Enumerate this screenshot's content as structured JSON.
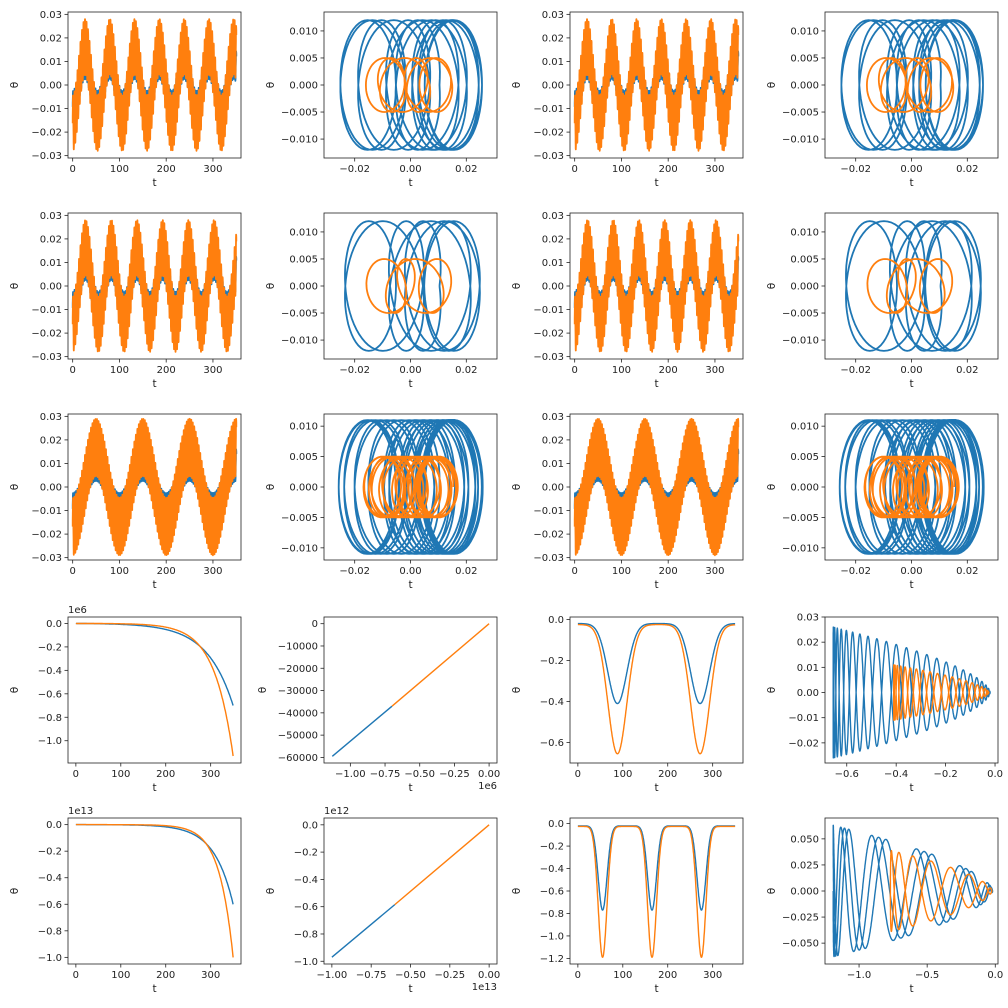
{
  "figure": {
    "rows": 5,
    "cols": 4
  },
  "colors": {
    "blue": "#1f77b4",
    "orange": "#ff7f0e"
  },
  "chart_data": [
    {
      "type": "line",
      "signal": "osc_time",
      "amps": [
        0.016,
        0.028
      ],
      "period": 53,
      "xlim": [
        -10,
        360
      ],
      "ylim": [
        -0.031,
        0.031
      ],
      "xticks": [
        0,
        100,
        200,
        300
      ],
      "xticklabels": [
        "0",
        "100",
        "200",
        "300"
      ],
      "yticks": [
        -0.03,
        -0.02,
        -0.01,
        0,
        0.01,
        0.02,
        0.03
      ],
      "yticklabels": [
        "-0.03",
        "-0.02",
        "-0.01",
        "0.00",
        "0.01",
        "0.02",
        "0.03"
      ],
      "xlabel": "t",
      "ylabel": "θ",
      "offset": ""
    },
    {
      "type": "line",
      "signal": "orbit_osc",
      "rx": [
        0.026,
        0.016
      ],
      "ry": [
        0.012,
        0.005
      ],
      "count": [
        14,
        9
      ],
      "xlim": [
        -0.031,
        0.031
      ],
      "ylim": [
        -0.0135,
        0.0135
      ],
      "xticks": [
        -0.02,
        0,
        0.02
      ],
      "xticklabels": [
        "-0.02",
        "0.00",
        "0.02"
      ],
      "yticks": [
        -0.01,
        -0.005,
        0,
        0.005,
        0.01
      ],
      "yticklabels": [
        "-0.010",
        "-0.005",
        "0.000",
        "0.005",
        "0.010"
      ],
      "xlabel": "t",
      "ylabel": "θ",
      "offset": ""
    },
    {
      "type": "line",
      "signal": "osc_time",
      "amps": [
        0.016,
        0.028
      ],
      "period": 53,
      "xlim": [
        -10,
        360
      ],
      "ylim": [
        -0.031,
        0.031
      ],
      "xticks": [
        0,
        100,
        200,
        300
      ],
      "xticklabels": [
        "0",
        "100",
        "200",
        "300"
      ],
      "yticks": [
        -0.03,
        -0.02,
        -0.01,
        0,
        0.01,
        0.02,
        0.03
      ],
      "yticklabels": [
        "-0.03",
        "-0.02",
        "-0.01",
        "0.00",
        "0.01",
        "0.02",
        "0.03"
      ],
      "xlabel": "t",
      "ylabel": "θ",
      "offset": ""
    },
    {
      "type": "line",
      "signal": "orbit_osc",
      "rx": [
        0.026,
        0.016
      ],
      "ry": [
        0.012,
        0.005
      ],
      "count": [
        14,
        9
      ],
      "xlim": [
        -0.031,
        0.031
      ],
      "ylim": [
        -0.0135,
        0.0135
      ],
      "xticks": [
        -0.02,
        0,
        0.02
      ],
      "xticklabels": [
        "-0.02",
        "0.00",
        "0.02"
      ],
      "yticks": [
        -0.01,
        -0.005,
        0,
        0.005,
        0.01
      ],
      "yticklabels": [
        "-0.010",
        "-0.005",
        "0.000",
        "0.005",
        "0.010"
      ],
      "xlabel": "t",
      "ylabel": "θ",
      "offset": ""
    },
    {
      "type": "line",
      "signal": "osc_time",
      "amps": [
        0.016,
        0.028
      ],
      "period": 55,
      "xlim": [
        -10,
        360
      ],
      "ylim": [
        -0.031,
        0.031
      ],
      "xticks": [
        0,
        100,
        200,
        300
      ],
      "xticklabels": [
        "0",
        "100",
        "200",
        "300"
      ],
      "yticks": [
        -0.03,
        -0.02,
        -0.01,
        0,
        0.01,
        0.02,
        0.03
      ],
      "yticklabels": [
        "-0.03",
        "-0.02",
        "-0.01",
        "0.00",
        "0.01",
        "0.02",
        "0.03"
      ],
      "xlabel": "t",
      "ylabel": "θ",
      "offset": ""
    },
    {
      "type": "line",
      "signal": "orbit_osc",
      "rx": [
        0.026,
        0.016
      ],
      "ry": [
        0.012,
        0.005
      ],
      "count": [
        8,
        6
      ],
      "xlim": [
        -0.031,
        0.031
      ],
      "ylim": [
        -0.0135,
        0.0135
      ],
      "xticks": [
        -0.02,
        0,
        0.02
      ],
      "xticklabels": [
        "-0.02",
        "0.00",
        "0.02"
      ],
      "yticks": [
        -0.01,
        -0.005,
        0,
        0.005,
        0.01
      ],
      "yticklabels": [
        "-0.010",
        "-0.005",
        "0.000",
        "0.005",
        "0.010"
      ],
      "xlabel": "t",
      "ylabel": "θ",
      "offset": ""
    },
    {
      "type": "line",
      "signal": "osc_time",
      "amps": [
        0.016,
        0.028
      ],
      "period": 55,
      "xlim": [
        -10,
        360
      ],
      "ylim": [
        -0.031,
        0.031
      ],
      "xticks": [
        0,
        100,
        200,
        300
      ],
      "xticklabels": [
        "0",
        "100",
        "200",
        "300"
      ],
      "yticks": [
        -0.03,
        -0.02,
        -0.01,
        0,
        0.01,
        0.02,
        0.03
      ],
      "yticklabels": [
        "-0.03",
        "-0.02",
        "-0.01",
        "0.00",
        "0.01",
        "0.02",
        "0.03"
      ],
      "xlabel": "t",
      "ylabel": "θ",
      "offset": ""
    },
    {
      "type": "line",
      "signal": "orbit_osc",
      "rx": [
        0.026,
        0.016
      ],
      "ry": [
        0.012,
        0.005
      ],
      "count": [
        8,
        6
      ],
      "xlim": [
        -0.031,
        0.031
      ],
      "ylim": [
        -0.0135,
        0.0135
      ],
      "xticks": [
        -0.02,
        0,
        0.02
      ],
      "xticklabels": [
        "-0.02",
        "0.00",
        "0.02"
      ],
      "yticks": [
        -0.01,
        -0.005,
        0,
        0.005,
        0.01
      ],
      "yticklabels": [
        "-0.010",
        "-0.005",
        "0.000",
        "0.005",
        "0.010"
      ],
      "xlabel": "t",
      "ylabel": "θ",
      "offset": ""
    },
    {
      "type": "line",
      "signal": "osc_time",
      "amps": [
        0.016,
        0.029
      ],
      "period": 100,
      "xlim": [
        -10,
        360
      ],
      "ylim": [
        -0.031,
        0.031
      ],
      "xticks": [
        0,
        100,
        200,
        300
      ],
      "xticklabels": [
        "0",
        "100",
        "200",
        "300"
      ],
      "yticks": [
        -0.03,
        -0.02,
        -0.01,
        0,
        0.01,
        0.02,
        0.03
      ],
      "yticklabels": [
        "-0.03",
        "-0.02",
        "-0.01",
        "0.00",
        "0.01",
        "0.02",
        "0.03"
      ],
      "xlabel": "t",
      "ylabel": "θ",
      "offset": ""
    },
    {
      "type": "line",
      "signal": "orbit_osc",
      "rx": [
        0.026,
        0.017
      ],
      "ry": [
        0.011,
        0.005
      ],
      "count": [
        26,
        20
      ],
      "xlim": [
        -0.031,
        0.031
      ],
      "ylim": [
        -0.012,
        0.012
      ],
      "xticks": [
        -0.02,
        0,
        0.02
      ],
      "xticklabels": [
        "-0.02",
        "0.00",
        "0.02"
      ],
      "yticks": [
        -0.01,
        -0.005,
        0,
        0.005,
        0.01
      ],
      "yticklabels": [
        "-0.010",
        "-0.005",
        "0.000",
        "0.005",
        "0.010"
      ],
      "xlabel": "t",
      "ylabel": "θ",
      "offset": ""
    },
    {
      "type": "line",
      "signal": "osc_time",
      "amps": [
        0.016,
        0.029
      ],
      "period": 100,
      "xlim": [
        -10,
        360
      ],
      "ylim": [
        -0.031,
        0.031
      ],
      "xticks": [
        0,
        100,
        200,
        300
      ],
      "xticklabels": [
        "0",
        "100",
        "200",
        "300"
      ],
      "yticks": [
        -0.03,
        -0.02,
        -0.01,
        0,
        0.01,
        0.02,
        0.03
      ],
      "yticklabels": [
        "-0.03",
        "-0.02",
        "-0.01",
        "0.00",
        "0.01",
        "0.02",
        "0.03"
      ],
      "xlabel": "t",
      "ylabel": "θ",
      "offset": ""
    },
    {
      "type": "line",
      "signal": "orbit_osc",
      "rx": [
        0.026,
        0.017
      ],
      "ry": [
        0.011,
        0.005
      ],
      "count": [
        26,
        20
      ],
      "xlim": [
        -0.031,
        0.031
      ],
      "ylim": [
        -0.012,
        0.012
      ],
      "xticks": [
        -0.02,
        0,
        0.02
      ],
      "xticklabels": [
        "-0.02",
        "0.00",
        "0.02"
      ],
      "yticks": [
        -0.01,
        -0.005,
        0,
        0.005,
        0.01
      ],
      "yticklabels": [
        "-0.010",
        "-0.005",
        "0.000",
        "0.005",
        "0.010"
      ],
      "xlabel": "t",
      "ylabel": "θ",
      "offset": ""
    },
    {
      "type": "line",
      "signal": "diverge_time",
      "ends": [
        -0.7,
        -1.13
      ],
      "knee": [
        58,
        42
      ],
      "xlim": [
        -17.5,
        367.5
      ],
      "ylim": [
        -1.19,
        0.055
      ],
      "xticks": [
        0,
        100,
        200,
        300
      ],
      "xticklabels": [
        "0",
        "100",
        "200",
        "300"
      ],
      "yticks": [
        -1.0,
        -0.8,
        -0.6,
        -0.4,
        -0.2,
        0
      ],
      "yticklabels": [
        "-1.0",
        "-0.8",
        "-0.6",
        "-0.4",
        "-0.2",
        "0.0"
      ],
      "xlabel": "t",
      "ylabel": "θ",
      "offset": "1e6"
    },
    {
      "type": "line",
      "signal": "straight_segments",
      "segments": [
        [
          [
            -1.13,
            -59500
          ],
          [
            -0.7,
            -37000
          ]
        ],
        [
          [
            -0.7,
            -37000
          ],
          [
            0,
            0
          ]
        ]
      ],
      "xlim": [
        -1.19,
        0.057
      ],
      "ylim": [
        -62500,
        3000
      ],
      "xticks": [
        -1.0,
        -0.75,
        -0.5,
        -0.25,
        0
      ],
      "xticklabels": [
        "-1.00",
        "-0.75",
        "-0.50",
        "-0.25",
        "0.00"
      ],
      "yticks": [
        -60000,
        -50000,
        -40000,
        -30000,
        -20000,
        -10000,
        0
      ],
      "yticklabels": [
        "-60000",
        "-50000",
        "-40000",
        "-30000",
        "-20000",
        "-10000",
        "0"
      ],
      "xlabel": "t",
      "ylabel": "θ",
      "offset": "1e6"
    },
    {
      "type": "line",
      "signal": "dips",
      "depths": [
        -0.41,
        -0.655
      ],
      "baseline": [
        -0.02,
        -0.025
      ],
      "centers": [
        88,
        272
      ],
      "width": 30,
      "xlim": [
        -17.5,
        367.5
      ],
      "ylim": [
        -0.7,
        0.012
      ],
      "xticks": [
        0,
        100,
        200,
        300
      ],
      "xticklabels": [
        "0",
        "100",
        "200",
        "300"
      ],
      "yticks": [
        -0.6,
        -0.4,
        -0.2,
        0
      ],
      "yticklabels": [
        "-0.6",
        "-0.4",
        "-0.2",
        "0.0"
      ],
      "xlabel": "t",
      "ylabel": "θ",
      "offset": ""
    },
    {
      "type": "line",
      "signal": "cone_orbit",
      "xmin": [
        -0.655,
        -0.41
      ],
      "xmax": [
        -0.02,
        -0.025
      ],
      "amp": [
        0.026,
        0.011
      ],
      "cycles": [
        36,
        30
      ],
      "xlim": [
        -0.688,
        0.012
      ],
      "ylim": [
        -0.028,
        0.03
      ],
      "xticks": [
        -0.6,
        -0.4,
        -0.2,
        0
      ],
      "xticklabels": [
        "-0.6",
        "-0.4",
        "-0.2",
        "0.0"
      ],
      "yticks": [
        -0.02,
        -0.01,
        0,
        0.01,
        0.02,
        0.03
      ],
      "yticklabels": [
        "-0.02",
        "-0.01",
        "0.00",
        "0.01",
        "0.02",
        "0.03"
      ],
      "xlabel": "t",
      "ylabel": "θ",
      "offset": ""
    },
    {
      "type": "line",
      "signal": "diverge_time",
      "ends": [
        -0.6,
        -1.0
      ],
      "knee": [
        42,
        31
      ],
      "xlim": [
        -17.5,
        367.5
      ],
      "ylim": [
        -1.05,
        0.05
      ],
      "xticks": [
        0,
        100,
        200,
        300
      ],
      "xticklabels": [
        "0",
        "100",
        "200",
        "300"
      ],
      "yticks": [
        -1.0,
        -0.8,
        -0.6,
        -0.4,
        -0.2,
        0
      ],
      "yticklabels": [
        "-1.0",
        "-0.8",
        "-0.6",
        "-0.4",
        "-0.2",
        "0.0"
      ],
      "xlabel": "t",
      "ylabel": "θ",
      "offset": "1e13"
    },
    {
      "type": "line",
      "signal": "straight_segments",
      "segments": [
        [
          [
            -1.0,
            -0.97
          ],
          [
            -0.6,
            -0.585
          ]
        ],
        [
          [
            -0.6,
            -0.585
          ],
          [
            0,
            0
          ]
        ]
      ],
      "xlim": [
        -1.05,
        0.05
      ],
      "ylim": [
        -1.02,
        0.05
      ],
      "xticks": [
        -1.0,
        -0.75,
        -0.5,
        -0.25,
        0
      ],
      "xticklabels": [
        "-1.00",
        "-0.75",
        "-0.50",
        "-0.25",
        "0.00"
      ],
      "yticks": [
        -1.0,
        -0.8,
        -0.6,
        -0.4,
        -0.2,
        0
      ],
      "yticklabels": [
        "-1.0",
        "-0.8",
        "-0.6",
        "-0.4",
        "-0.2",
        "0.0"
      ],
      "xlabel": "t",
      "ylabel": "θ",
      "offset": "1e12",
      "xoffset": "1e13"
    },
    {
      "type": "line",
      "signal": "dips",
      "depths": [
        -0.77,
        -1.19
      ],
      "baseline": [
        -0.02,
        -0.025
      ],
      "centers": [
        55,
        165,
        275
      ],
      "width": 14,
      "xlim": [
        -17.5,
        367.5
      ],
      "ylim": [
        -1.25,
        0.05
      ],
      "xticks": [
        0,
        100,
        200,
        300
      ],
      "xticklabels": [
        "0",
        "100",
        "200",
        "300"
      ],
      "yticks": [
        -1.2,
        -1.0,
        -0.8,
        -0.6,
        -0.4,
        -0.2,
        0
      ],
      "yticklabels": [
        "-1.2",
        "-1.0",
        "-0.8",
        "-0.6",
        "-0.4",
        "-0.2",
        "0.0"
      ],
      "xlabel": "t",
      "ylabel": "θ",
      "offset": ""
    },
    {
      "type": "line",
      "signal": "cone_orbit",
      "xmin": [
        -1.19,
        -0.77
      ],
      "xmax": [
        -0.02,
        -0.025
      ],
      "amp": [
        0.063,
        0.039
      ],
      "cycles": [
        16,
        12
      ],
      "xlim": [
        -1.25,
        0.02
      ],
      "ylim": [
        -0.07,
        0.07
      ],
      "xticks": [
        -1.0,
        -0.5,
        0
      ],
      "xticklabels": [
        "-1.0",
        "-0.5",
        "0.0"
      ],
      "yticks": [
        -0.05,
        -0.025,
        0,
        0.025,
        0.05
      ],
      "yticklabels": [
        "-0.050",
        "-0.025",
        "0.000",
        "0.025",
        "0.050"
      ],
      "xlabel": "t",
      "ylabel": "θ",
      "offset": ""
    }
  ]
}
